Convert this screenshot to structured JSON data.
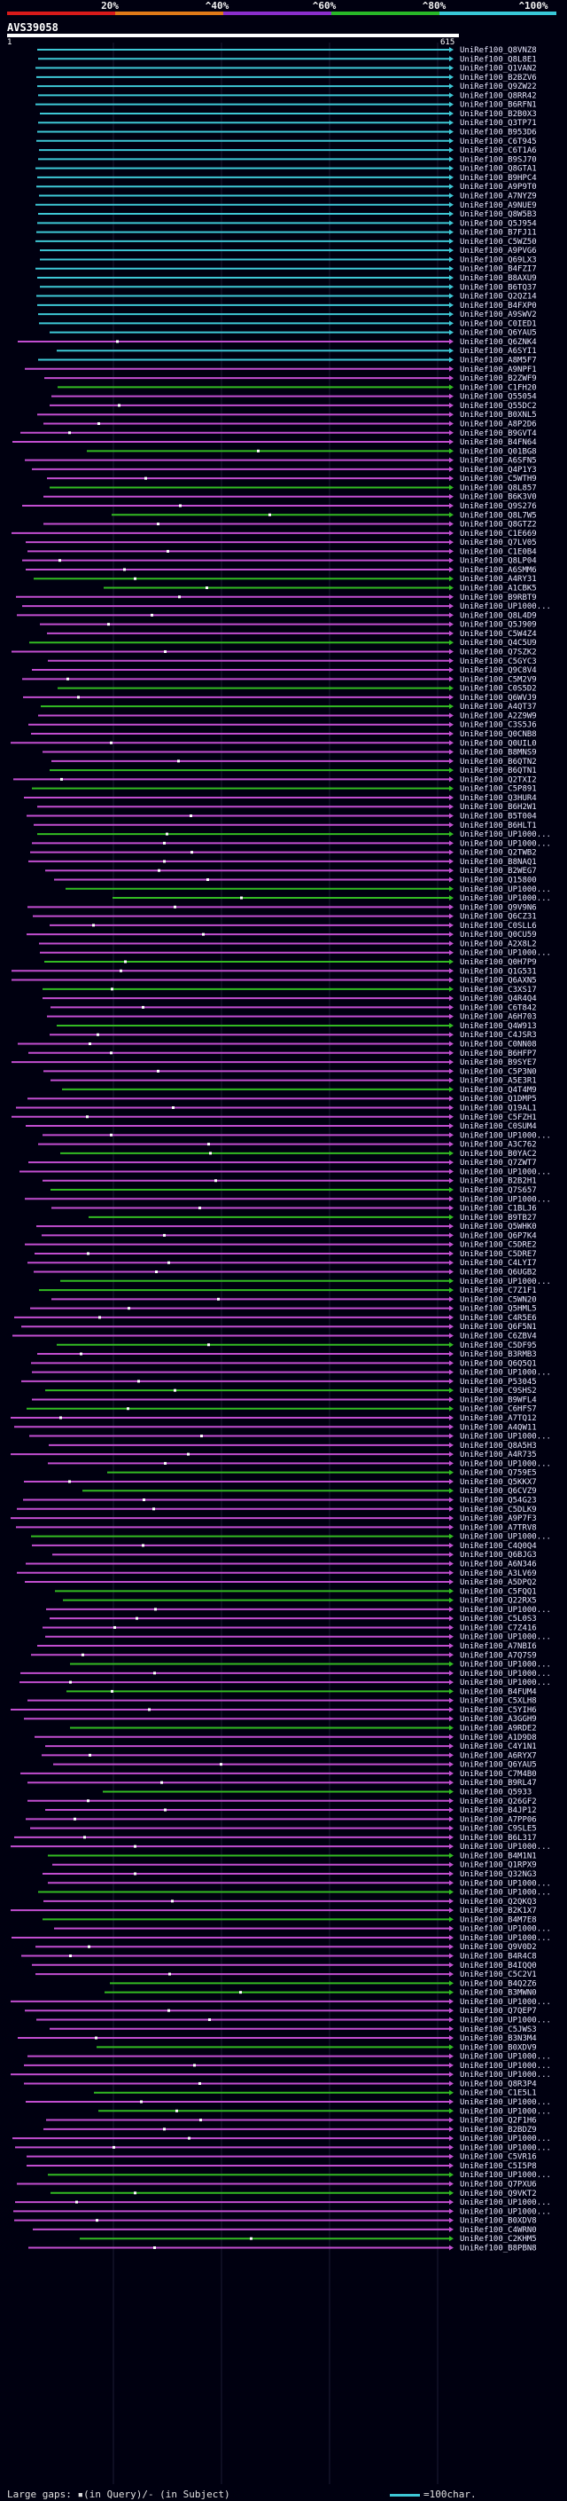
{
  "scale": {
    "labels": [
      "20%",
      "^40%",
      "^60%",
      "^80%",
      "^100%"
    ],
    "colors": [
      "#d81a1a",
      "#e07a18",
      "#8a2ecc",
      "#28b828",
      "#38c8d8"
    ]
  },
  "query": {
    "id": "AVS39058",
    "start": "1",
    "end": "615"
  },
  "colors": {
    "cyan": "#3ec8d6",
    "green": "#33bb22",
    "magenta": "#c24ed0",
    "gap": "#ffffff"
  },
  "legend": {
    "gaps": "Large gaps: ▪(in Query)/- (in Subject)",
    "scale": "=100char."
  },
  "hits": [
    "UniRef100_Q8VNZ8",
    "UniRef100_Q8L8E1",
    "UniRef100_Q1VAN2",
    "UniRef100_B2BZV6",
    "UniRef100_Q9ZW22",
    "UniRef100_Q8RR42",
    "UniRef100_B6RFN1",
    "UniRef100_B2B0X3",
    "UniRef100_Q3TP71",
    "UniRef100_B953D6",
    "UniRef100_C6T945",
    "UniRef100_C6T1A6",
    "UniRef100_B9SJ70",
    "UniRef100_Q8GTA1",
    "UniRef100_B9HPC4",
    "UniRef100_A9P9T0",
    "UniRef100_A7NYZ9",
    "UniRef100_A9NUE9",
    "UniRef100_Q8W5B3",
    "UniRef100_Q5J954",
    "UniRef100_B7FJ11",
    "UniRef100_C5WZ50",
    "UniRef100_A9PVG6",
    "UniRef100_Q69LX3",
    "UniRef100_B4FZI7",
    "UniRef100_B8AXU9",
    "UniRef100_B6TQ37",
    "UniRef100_Q2QZ14",
    "UniRef100_B4FXP0",
    "UniRef100_A9SWV2",
    "UniRef100_C0IED1",
    "UniRef100_Q6YAU5",
    "UniRef100_Q6ZNK4",
    "UniRef100_A6SYI1",
    "UniRef100_A8M5F7",
    "UniRef100_A9NPF1",
    "UniRef100_B2ZWF9",
    "UniRef100_C1FH20",
    "UniRef100_Q55054",
    "UniRef100_Q55DC2",
    "UniRef100_B0XNL5",
    "UniRef100_A8P2D6",
    "UniRef100_B9GVT4",
    "UniRef100_B4FN64",
    "UniRef100_Q01BG8",
    "UniRef100_A6SFN5",
    "UniRef100_Q4P1Y3",
    "UniRef100_C5WTH9",
    "UniRef100_Q8L857",
    "UniRef100_B6K3V0",
    "UniRef100_Q9S276",
    "UniRef100_Q8L7W5",
    "UniRef100_Q8GTZ2",
    "UniRef100_C1E669",
    "UniRef100_Q7LV05",
    "UniRef100_C1E0B4",
    "UniRef100_Q8LP04",
    "UniRef100_A6SMM6",
    "UniRef100_A4RY31",
    "UniRef100_A1CBK5",
    "UniRef100_B9RBT9",
    "UniRef100_UP1000...",
    "UniRef100_Q8L4D9",
    "UniRef100_Q5J909",
    "UniRef100_C5W4Z4",
    "UniRef100_Q4C5U9",
    "UniRef100_Q7SZK2",
    "UniRef100_C5GYC3",
    "UniRef100_Q9C8V4",
    "UniRef100_C5M2V9",
    "UniRef100_C0S5D2",
    "UniRef100_Q6WVJ9",
    "UniRef100_A4QT37",
    "UniRef100_A2Z9W9",
    "UniRef100_C3S5J6",
    "UniRef100_Q0CNB8",
    "UniRef100_Q0UIL0",
    "UniRef100_B8MNS9",
    "UniRef100_B6QTN2",
    "UniRef100_B6QTN1",
    "UniRef100_Q2TXI2",
    "UniRef100_C5P891",
    "UniRef100_Q3HUR4",
    "UniRef100_B6H2W1",
    "UniRef100_B5T004",
    "UniRef100_B6HLT1",
    "UniRef100_UP1000...",
    "UniRef100_UP1000...",
    "UniRef100_Q2TWB2",
    "UniRef100_B8NAQ1",
    "UniRef100_B2WEG7",
    "UniRef100_Q15800",
    "UniRef100_UP1000...",
    "UniRef100_UP1000...",
    "UniRef100_Q9V9N6",
    "UniRef100_Q6CZ31",
    "UniRef100_C0SLL6",
    "UniRef100_Q0CU59",
    "UniRef100_A2X8L2",
    "UniRef100_UP1000...",
    "UniRef100_Q0H7P9",
    "UniRef100_Q1G531",
    "UniRef100_Q6AXN5",
    "UniRef100_C3XS17",
    "UniRef100_Q4R4Q4",
    "UniRef100_C6T842",
    "UniRef100_A6H703",
    "UniRef100_Q4W913",
    "UniRef100_C4JSR3",
    "UniRef100_C0NN08",
    "UniRef100_B6HFP7",
    "UniRef100_B9SYE7",
    "UniRef100_C5P3N0",
    "UniRef100_A5E3R1",
    "UniRef100_Q4T4M9",
    "UniRef100_Q1DMP5",
    "UniRef100_Q19AL1",
    "UniRef100_C5FZH1",
    "UniRef100_C0SUM4",
    "UniRef100_UP1000...",
    "UniRef100_A3C762",
    "UniRef100_B0YAC2",
    "UniRef100_Q7ZWT7",
    "UniRef100_UP1000...",
    "UniRef100_B2B2H1",
    "UniRef100_Q7S657",
    "UniRef100_UP1000...",
    "UniRef100_C1BLJ6",
    "UniRef100_B9TB27",
    "UniRef100_Q5WHK0",
    "UniRef100_Q6P7K4",
    "UniRef100_C5DRE2",
    "UniRef100_C5DRE7",
    "UniRef100_C4LYI7",
    "UniRef100_Q6UGB2",
    "UniRef100_UP1000...",
    "UniRef100_C7Z1F1",
    "UniRef100_C5WN20",
    "UniRef100_Q5HML5",
    "UniRef100_C4R5E6",
    "UniRef100_Q6F5N1",
    "UniRef100_C6ZBV4",
    "UniRef100_C5DF95",
    "UniRef100_B3RMB3",
    "UniRef100_Q6Q5Q1",
    "UniRef100_UP1000...",
    "UniRef100_P53045",
    "UniRef100_C9SHS2",
    "UniRef100_B9WFL4",
    "UniRef100_C6HFS7",
    "UniRef100_A7TQ12",
    "UniRef100_A4QW11",
    "UniRef100_UP1000...",
    "UniRef100_Q8A5H3",
    "UniRef100_A4R735",
    "UniRef100_UP1000...",
    "UniRef100_Q759E5",
    "UniRef100_Q5KKX7",
    "UniRef100_Q6CVZ9",
    "UniRef100_Q54G23",
    "UniRef100_C5DLK9",
    "UniRef100_A9P7F3",
    "UniRef100_A7TRV8",
    "UniRef100_UP1000...",
    "UniRef100_C4Q0Q4",
    "UniRef100_Q6BJG3",
    "UniRef100_A6N346",
    "UniRef100_A3LV69",
    "UniRef100_A5DPQ2",
    "UniRef100_C5FQQ1",
    "UniRef100_Q22RX5",
    "UniRef100_UP1000...",
    "UniRef100_C5L0S3",
    "UniRef100_C7Z416",
    "UniRef100_UP1000...",
    "UniRef100_A7NBI6",
    "UniRef100_A7Q7S9",
    "UniRef100_UP1000...",
    "UniRef100_UP1000...",
    "UniRef100_UP1000...",
    "UniRef100_B4FUM4",
    "UniRef100_C5XLH8",
    "UniRef100_C5YIH6",
    "UniRef100_A3GGH9",
    "UniRef100_A9RDE2",
    "UniRef100_A1D9D8",
    "UniRef100_C4Y1N1",
    "UniRef100_A6RYX7",
    "UniRef100_Q6YAU5",
    "UniRef100_C7M4B0",
    "UniRef100_B9RL47",
    "UniRef100_Q5933",
    "UniRef100_Q26GF2",
    "UniRef100_B4JP12",
    "UniRef100_A7PP06",
    "UniRef100_C9SLE5",
    "UniRef100_B6L317",
    "UniRef100_UP1000...",
    "UniRef100_B4M1N1",
    "UniRef100_Q1RPX9",
    "UniRef100_Q32NG3",
    "UniRef100_UP1000...",
    "UniRef100_UP1000...",
    "UniRef100_Q2QKQ3",
    "UniRef100_B2K1X7",
    "UniRef100_B4M7E8",
    "UniRef100_UP1000...",
    "UniRef100_UP1000...",
    "UniRef100_Q9V0D2",
    "UniRef100_B4R4C8",
    "UniRef100_B4IQQ0",
    "UniRef100_C5C2V1",
    "UniRef100_B4Q2Z6",
    "UniRef100_B3MWN0",
    "UniRef100_UP1000...",
    "UniRef100_Q7QEP7",
    "UniRef100_UP1000...",
    "UniRef100_C5JWS3",
    "UniRef100_B3N3M4",
    "UniRef100_B0XDV9",
    "UniRef100_UP1000...",
    "UniRef100_UP1000...",
    "UniRef100_UP1000...",
    "UniRef100_Q8R3P4",
    "UniRef100_C1E5L1",
    "UniRef100_UP1000...",
    "UniRef100_UP1000...",
    "UniRef100_Q2F1H6",
    "UniRef100_B2BDZ9",
    "UniRef100_UP1000...",
    "UniRef100_UP1000...",
    "UniRef100_C5VR16",
    "UniRef100_C5I5P8",
    "UniRef100_UP1000...",
    "UniRef100_Q7PXU6",
    "UniRef100_Q9VKT2",
    "UniRef100_UP1000...",
    "UniRef100_UP1000...",
    "UniRef100_B0XDV8",
    "UniRef100_C4WRN0",
    "UniRef100_C2KHM5",
    "UniRef100_B8PBN8"
  ]
}
